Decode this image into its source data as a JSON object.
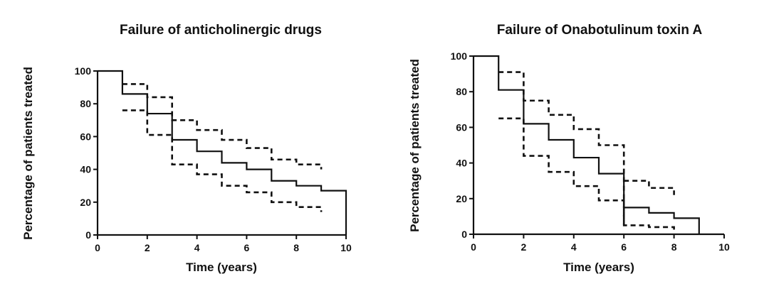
{
  "chart_data": [
    {
      "type": "line",
      "step": true,
      "title": "Failure of anticholinergic drugs",
      "xlabel": "Time (years)",
      "ylabel": "Percentage of patients treated",
      "xlim": [
        0,
        10
      ],
      "ylim": [
        0,
        100
      ],
      "xticks": [
        0,
        2,
        4,
        6,
        8,
        10
      ],
      "yticks": [
        0,
        20,
        40,
        60,
        80,
        100
      ],
      "grid": false,
      "series": [
        {
          "style": "solid",
          "x": [
            0,
            1,
            2,
            3,
            4,
            5,
            6,
            7,
            8,
            9,
            10,
            10
          ],
          "y": [
            100,
            86,
            74,
            58,
            51,
            44,
            40,
            33,
            30,
            27,
            27,
            0
          ]
        },
        {
          "style": "dashed",
          "x": [
            1,
            2,
            3,
            4,
            5,
            6,
            7,
            8,
            9,
            9
          ],
          "y": [
            92,
            84,
            70,
            64,
            58,
            53,
            46,
            43,
            43,
            40
          ]
        },
        {
          "style": "dashed",
          "x": [
            1,
            2,
            3,
            4,
            5,
            6,
            7,
            8,
            9,
            9
          ],
          "y": [
            76,
            61,
            43,
            37,
            30,
            26,
            20,
            17,
            17,
            14
          ]
        }
      ]
    },
    {
      "type": "line",
      "step": true,
      "title": "Failure of Onabotulinum toxin A",
      "xlabel": "Time (years)",
      "ylabel": "Percentage of patients treated",
      "xlim": [
        0,
        10
      ],
      "ylim": [
        0,
        100
      ],
      "xticks": [
        0,
        2,
        4,
        6,
        8,
        10
      ],
      "yticks": [
        0,
        20,
        40,
        60,
        80,
        100
      ],
      "grid": false,
      "series": [
        {
          "style": "solid",
          "x": [
            0,
            1,
            2,
            3,
            4,
            5,
            6,
            7,
            8,
            9,
            9
          ],
          "y": [
            100,
            81,
            62,
            53,
            43,
            34,
            15,
            12,
            9,
            9,
            0
          ]
        },
        {
          "style": "dashed",
          "x": [
            1,
            2,
            3,
            4,
            5,
            6,
            6
          ],
          "y": [
            91,
            75,
            67,
            59,
            50,
            50,
            5
          ]
        },
        {
          "style": "dashed",
          "x": [
            6,
            7,
            8,
            8
          ],
          "y": [
            30,
            26,
            26,
            22
          ]
        },
        {
          "style": "dashed",
          "x": [
            1,
            2,
            3,
            4,
            5,
            6,
            7,
            8,
            8
          ],
          "y": [
            65,
            44,
            35,
            27,
            19,
            5,
            4,
            4,
            1
          ]
        }
      ]
    }
  ]
}
